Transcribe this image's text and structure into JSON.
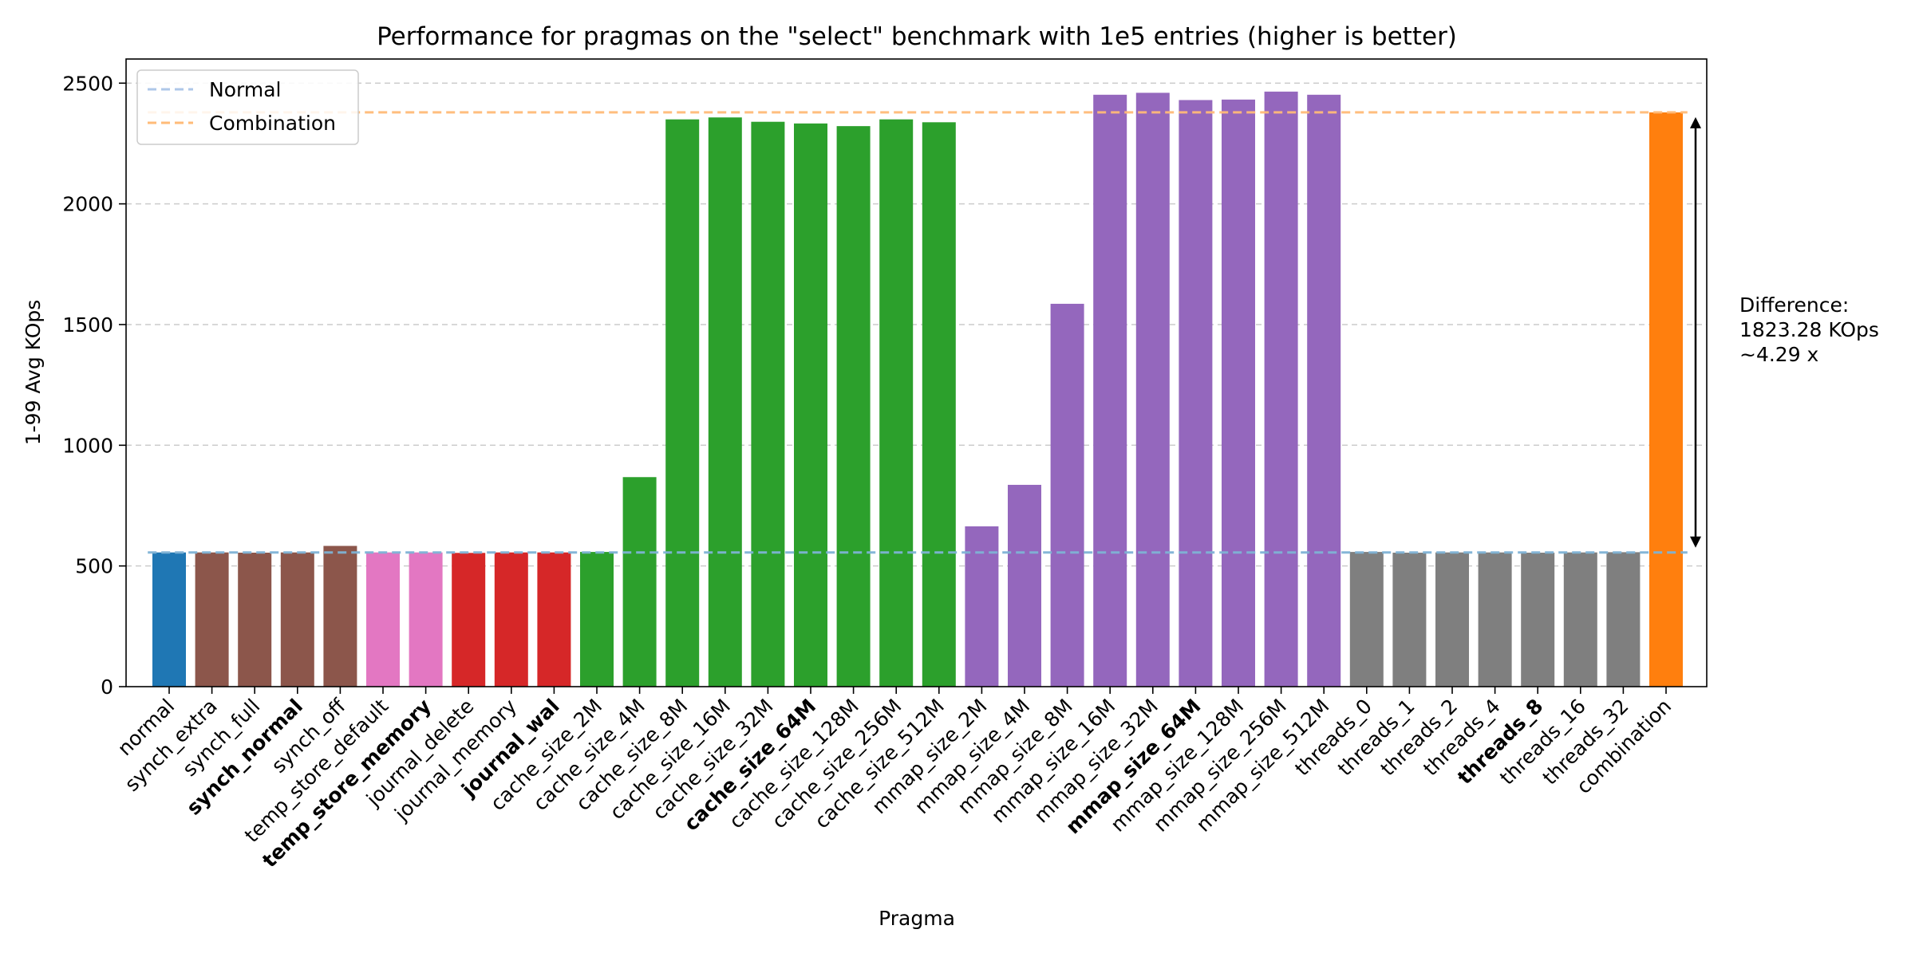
{
  "chart_data": {
    "type": "bar",
    "title": "Performance for pragmas on the \"select\" benchmark with 1e5 entries (higher is better)",
    "xlabel": "Pragma",
    "ylabel": "1-99 Avg KOps",
    "ylim": [
      0,
      2600
    ],
    "yticks": [
      0,
      500,
      1000,
      1500,
      2000,
      2500
    ],
    "grid": "horizontal dashed",
    "legend": {
      "placement": "top-left",
      "entries": [
        {
          "label": "Normal",
          "color": "#aec7e8",
          "style": "dashed"
        },
        {
          "label": "Combination",
          "color": "#ffbb78",
          "style": "dashed"
        }
      ]
    },
    "reference_lines": [
      {
        "name": "Normal",
        "y": 556,
        "color": "#7fb3d5"
      },
      {
        "name": "Combination",
        "y": 2379,
        "color": "#ffbb78"
      }
    ],
    "categories": [
      "normal",
      "synch_extra",
      "synch_full",
      "synch_normal",
      "synch_off",
      "temp_store_default",
      "temp_store_memory",
      "journal_delete",
      "journal_memory",
      "journal_wal",
      "cache_size_2M",
      "cache_size_4M",
      "cache_size_8M",
      "cache_size_16M",
      "cache_size_32M",
      "cache_size_64M",
      "cache_size_128M",
      "cache_size_256M",
      "cache_size_512M",
      "mmap_size_2M",
      "mmap_size_4M",
      "mmap_size_8M",
      "mmap_size_16M",
      "mmap_size_32M",
      "mmap_size_64M",
      "mmap_size_128M",
      "mmap_size_256M",
      "mmap_size_512M",
      "threads_0",
      "threads_1",
      "threads_2",
      "threads_4",
      "threads_8",
      "threads_16",
      "threads_32",
      "combination"
    ],
    "values": [
      556,
      556,
      555,
      556,
      583,
      556,
      556,
      554,
      556,
      556,
      558,
      868,
      2350,
      2358,
      2340,
      2333,
      2322,
      2350,
      2338,
      664,
      836,
      1586,
      2452,
      2460,
      2430,
      2432,
      2465,
      2452,
      558,
      555,
      556,
      556,
      555,
      556,
      557,
      2379
    ],
    "bar_colors": [
      "#1f77b4",
      "#8c564b",
      "#8c564b",
      "#8c564b",
      "#8c564b",
      "#e377c2",
      "#e377c2",
      "#d62728",
      "#d62728",
      "#d62728",
      "#2ca02c",
      "#2ca02c",
      "#2ca02c",
      "#2ca02c",
      "#2ca02c",
      "#2ca02c",
      "#2ca02c",
      "#2ca02c",
      "#2ca02c",
      "#9467bd",
      "#9467bd",
      "#9467bd",
      "#9467bd",
      "#9467bd",
      "#9467bd",
      "#9467bd",
      "#9467bd",
      "#9467bd",
      "#7f7f7f",
      "#7f7f7f",
      "#7f7f7f",
      "#7f7f7f",
      "#7f7f7f",
      "#7f7f7f",
      "#7f7f7f",
      "#ff7f0e"
    ],
    "bold_labels": [
      "synch_normal",
      "temp_store_memory",
      "journal_wal",
      "cache_size_64M",
      "mmap_size_64M",
      "threads_8"
    ],
    "annotation": {
      "lines": [
        "Difference:",
        "1823.28 KOps",
        "~4.29 x"
      ]
    }
  }
}
